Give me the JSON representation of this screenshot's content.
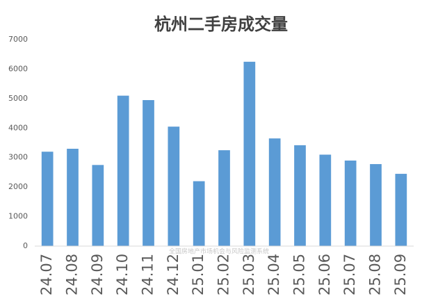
{
  "chart_data": {
    "type": "bar",
    "title": "杭州二手房成交量",
    "watermark": "全国房地产市场机会与风险监测系统",
    "categories": [
      "24.07",
      "24.08",
      "24.09",
      "24.10",
      "24.11",
      "24.12",
      "25.01",
      "25.02",
      "25.03",
      "25.04",
      "25.05",
      "25.06",
      "25.07",
      "25.08",
      "25.09"
    ],
    "values": [
      3200,
      3300,
      2750,
      5100,
      4950,
      4050,
      2200,
      3250,
      6250,
      3650,
      3420,
      3100,
      2900,
      2780,
      2450
    ],
    "color": "#5b9bd5",
    "ylim": [
      0,
      7000
    ],
    "yticks": [
      0,
      1000,
      2000,
      3000,
      4000,
      5000,
      6000,
      7000
    ],
    "grid": false
  }
}
